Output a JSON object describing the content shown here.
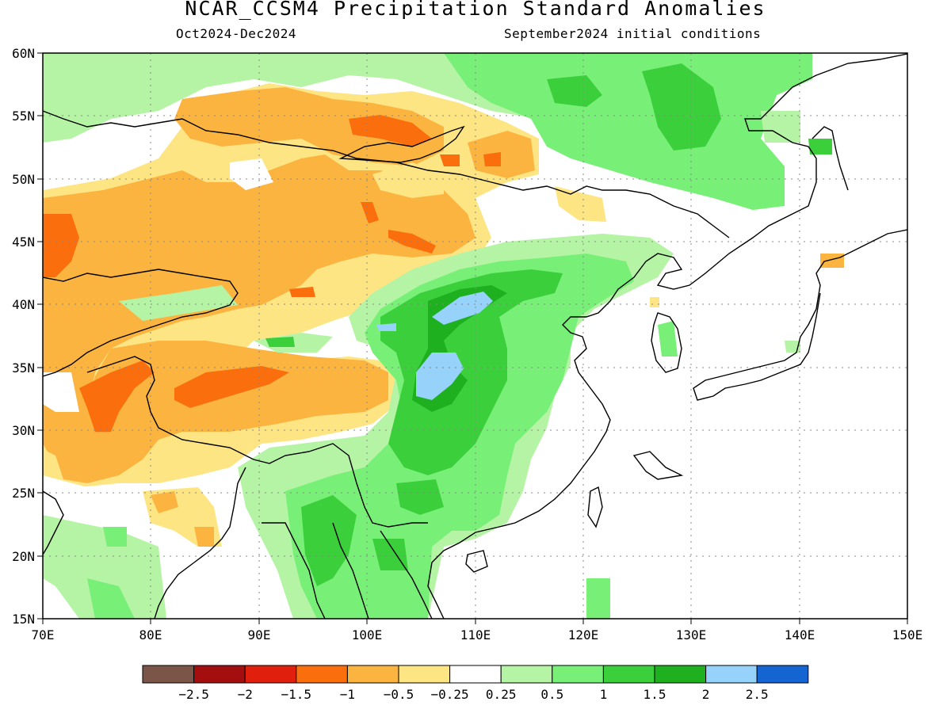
{
  "title": "NCAR_CCSM4 Precipitation Standard Anomalies",
  "period": "Oct2024-Dec2024",
  "init": "September2024 initial conditions",
  "map": {
    "lon_labels": [
      "70E",
      "80E",
      "90E",
      "100E",
      "110E",
      "120E",
      "130E",
      "140E",
      "150E"
    ],
    "lat_labels": [
      "60N",
      "55N",
      "50N",
      "45N",
      "40N",
      "35N",
      "30N",
      "25N",
      "20N",
      "15N"
    ],
    "lon_range": [
      70,
      150
    ],
    "lat_range": [
      15,
      60
    ],
    "grid": "dotted"
  },
  "legend": {
    "colors": [
      "#7a5548",
      "#a50e0e",
      "#e0200c",
      "#fa6e0e",
      "#fbb440",
      "#fde583",
      "#ffffff",
      "#b4f4a4",
      "#78f078",
      "#3ccf3c",
      "#1eb01e",
      "#96d2fa",
      "#1464d2"
    ],
    "labels": [
      "−2.5",
      "−2",
      "−1.5",
      "−1",
      "−0.5",
      "−0.25",
      "0.25",
      "0.5",
      "1",
      "1.5",
      "2",
      "2.5"
    ]
  }
}
